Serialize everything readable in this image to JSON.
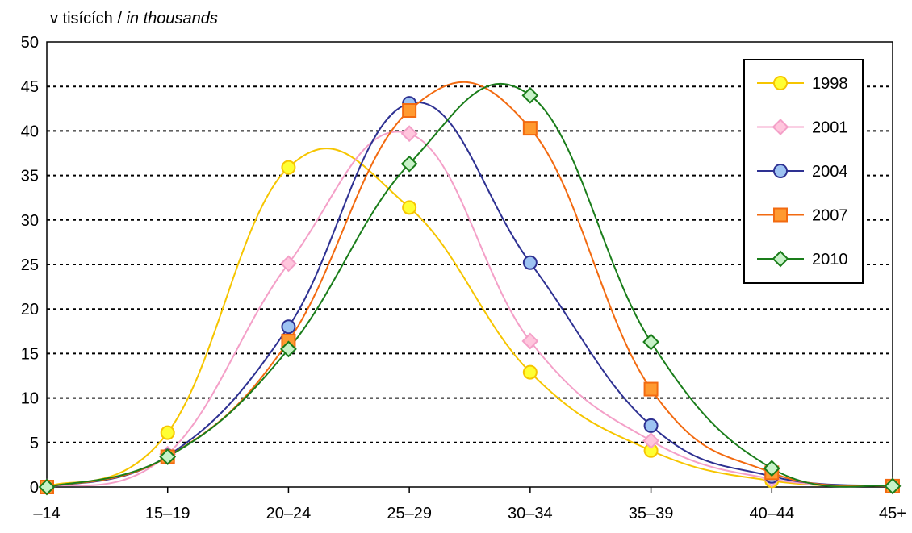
{
  "chart_data": {
    "type": "line",
    "unit_label": {
      "cz": "v tisících /",
      "en": "in thousands"
    },
    "categories": [
      "–14",
      "15–19",
      "20–24",
      "25–29",
      "30–34",
      "35–39",
      "40–44",
      "45+"
    ],
    "ylim": [
      0,
      50
    ],
    "yticks": [
      0,
      5,
      10,
      15,
      20,
      25,
      30,
      35,
      40,
      45,
      50
    ],
    "grid": "horizontal-dotted",
    "legend_position": "top-right",
    "series": [
      {
        "name": "1998",
        "values": [
          0,
          6.1,
          35.9,
          31.4,
          12.9,
          4.1,
          0.7,
          0.1
        ],
        "color": "#f6c500",
        "fill": "#ffff33",
        "marker": "circle"
      },
      {
        "name": "2001",
        "values": [
          0,
          3.7,
          25.1,
          39.7,
          16.4,
          5.2,
          0.9,
          0.1
        ],
        "color": "#f4a0c8",
        "fill": "#ffc6dd",
        "marker": "diamond"
      },
      {
        "name": "2004",
        "values": [
          0,
          3.5,
          18.0,
          43.1,
          25.2,
          6.9,
          1.2,
          0.1
        ],
        "color": "#2e3192",
        "fill": "#9dc3f2",
        "marker": "circle"
      },
      {
        "name": "2007",
        "values": [
          0,
          3.4,
          16.4,
          42.3,
          40.3,
          11.0,
          1.6,
          0.1
        ],
        "color": "#f26a10",
        "fill": "#ff9a30",
        "marker": "square"
      },
      {
        "name": "2010",
        "values": [
          0,
          3.4,
          15.5,
          36.3,
          44.0,
          16.3,
          2.1,
          0.1
        ],
        "color": "#1a7d1a",
        "fill": "#c8f2c8",
        "marker": "diamond"
      }
    ]
  }
}
